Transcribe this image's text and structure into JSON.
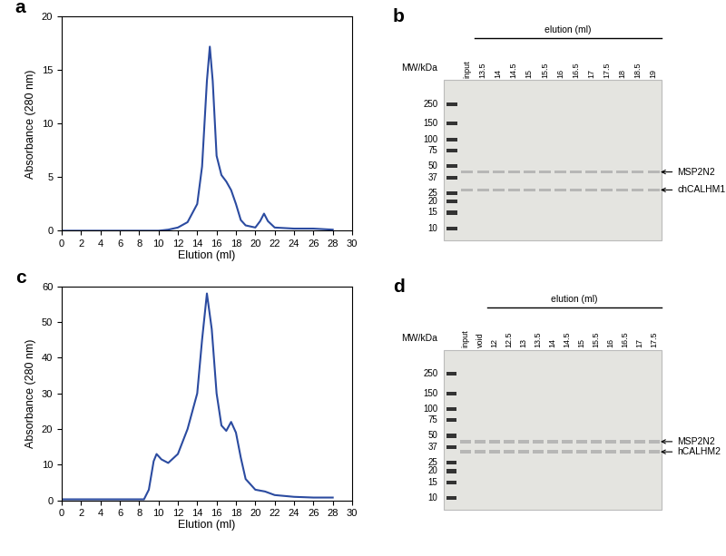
{
  "chart_data": [
    {
      "type": "line",
      "title": "a",
      "x_label": "Elution (ml)",
      "y_label": "Absorbance (280 nm)",
      "x": [
        0,
        10,
        11,
        12,
        13,
        14,
        14.5,
        15,
        15.3,
        15.6,
        16,
        16.5,
        17,
        17.5,
        18,
        18.5,
        19,
        20,
        20.5,
        20.9,
        21.3,
        22,
        24,
        26,
        28
      ],
      "values": [
        0,
        0,
        0.1,
        0.3,
        0.8,
        2.5,
        6,
        14,
        17.2,
        14,
        7,
        5.2,
        4.6,
        3.8,
        2.5,
        1,
        0.5,
        0.3,
        0.9,
        1.6,
        0.9,
        0.3,
        0.2,
        0.2,
        0.1
      ],
      "color": "#2b4ba0",
      "xlim": [
        0,
        30
      ],
      "xticks": [
        0,
        2,
        4,
        6,
        8,
        10,
        12,
        14,
        16,
        18,
        20,
        22,
        24,
        26,
        28,
        30
      ],
      "ylim": [
        0,
        20
      ],
      "yticks": [
        0,
        5,
        10,
        15,
        20
      ]
    },
    {
      "type": "line",
      "title": "c",
      "x_label": "Elution (ml)",
      "y_label": "Absorbance (280 nm)",
      "x": [
        0,
        8.5,
        9,
        9.5,
        9.8,
        10.3,
        11,
        12,
        13,
        14,
        14.5,
        15,
        15.5,
        16,
        16.5,
        17,
        17.5,
        18,
        18.5,
        19,
        20,
        21,
        22,
        24,
        26,
        28
      ],
      "values": [
        0.3,
        0.3,
        3,
        11,
        13,
        11.5,
        10.5,
        13,
        20,
        30,
        45,
        58,
        48,
        30,
        21,
        19.5,
        22,
        19,
        12,
        6,
        3,
        2.5,
        1.5,
        1,
        0.8,
        0.8
      ],
      "color": "#2b4ba0",
      "xlim": [
        0,
        30
      ],
      "xticks": [
        0,
        2,
        4,
        6,
        8,
        10,
        12,
        14,
        16,
        18,
        20,
        22,
        24,
        26,
        28,
        30
      ],
      "ylim": [
        0,
        60
      ],
      "yticks": [
        0,
        10,
        20,
        30,
        40,
        50,
        60
      ]
    }
  ],
  "gels": [
    {
      "label": "b",
      "mw_header": "MW/kDa",
      "mw_markers": [
        250,
        150,
        100,
        75,
        50,
        37,
        25,
        20,
        15,
        10
      ],
      "lanes": [
        "input"
      ],
      "elution_header": "elution (ml)",
      "elution_lanes": [
        "13.5",
        "14",
        "14.5",
        "15",
        "15.5",
        "16",
        "16.5",
        "17",
        "17.5",
        "18",
        "18.5",
        "19"
      ],
      "arrows": [
        "MSP2N2",
        "chCALHM1"
      ]
    },
    {
      "label": "d",
      "mw_header": "MW/kDa",
      "mw_markers": [
        250,
        150,
        100,
        75,
        50,
        37,
        25,
        20,
        15,
        10
      ],
      "lanes": [
        "input",
        "void"
      ],
      "elution_header": "elution (ml)",
      "elution_lanes": [
        "12",
        "12.5",
        "13",
        "13.5",
        "14",
        "14.5",
        "15",
        "15.5",
        "16",
        "16.5",
        "17",
        "17.5"
      ],
      "arrows": [
        "MSP2N2",
        "hCALHM2"
      ]
    }
  ]
}
